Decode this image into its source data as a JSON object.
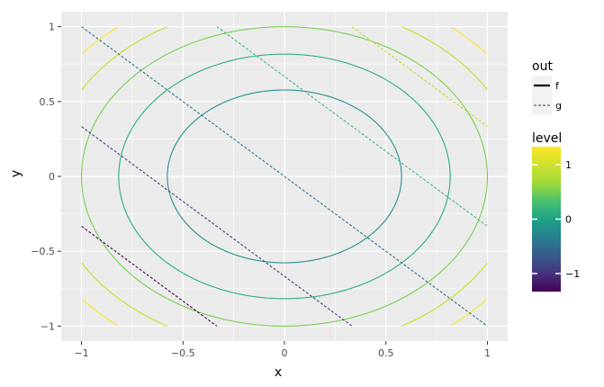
{
  "chart_data": {
    "type": "line",
    "title": "",
    "xlabel": "x",
    "ylabel": "y",
    "xlim": [
      -1.1,
      1.1
    ],
    "ylim": [
      -1.1,
      1.1
    ],
    "x_ticks": [
      -1,
      -0.5,
      0,
      0.5,
      1
    ],
    "x_tick_labels": [
      "−1",
      "−0.5",
      "0",
      "0.5",
      "1"
    ],
    "y_ticks": [
      -1,
      -0.5,
      0,
      0.5,
      1
    ],
    "y_tick_labels": [
      "−1",
      "−0.5",
      "0",
      "0.5",
      "1"
    ],
    "grid": true,
    "legends": {
      "linetype": {
        "title": "out",
        "entries": [
          {
            "label": "f",
            "style": "solid"
          },
          {
            "label": "g",
            "style": "dashed"
          }
        ]
      },
      "color": {
        "title": "level",
        "range": [
          -1.333,
          1.333
        ],
        "ticks": [
          -1,
          0,
          1
        ],
        "tick_labels": [
          "−1",
          "0",
          "1"
        ],
        "colormap": "viridis"
      },
      "placement": "right"
    },
    "series_f": {
      "description_of_function": "x^2 + y^2 contours",
      "levels": [
        {
          "level": 0.333,
          "color": "#26908d"
        },
        {
          "level": 0.667,
          "color": "#2ab075"
        },
        {
          "level": 1.0,
          "color": "#78cf4f"
        },
        {
          "level": 1.333,
          "color": "#c5e01f"
        },
        {
          "level": 1.667,
          "color": "#fde725"
        }
      ]
    },
    "series_g": {
      "description_of_function": "x + y contours",
      "levels": [
        {
          "level": -1.333,
          "color": "#440154"
        },
        {
          "level": -0.667,
          "color": "#423d84"
        },
        {
          "level": 0.0,
          "color": "#2b728e"
        },
        {
          "level": 0.667,
          "color": "#3ebb75"
        },
        {
          "level": 1.333,
          "color": "#c5e01f"
        }
      ]
    }
  }
}
